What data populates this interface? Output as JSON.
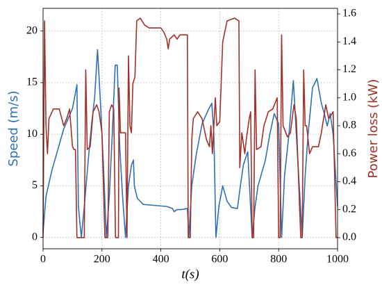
{
  "chart_data": {
    "type": "line",
    "xlabel": "t(s)",
    "ylabel": "Speed (m/s)",
    "y2label": "Power loss (kW)",
    "xlim": [
      0,
      1000
    ],
    "xticks": [
      0,
      200,
      400,
      600,
      800,
      1000
    ],
    "ylim": [
      -1.1,
      22.2
    ],
    "yticks": [
      0,
      5,
      10,
      15,
      20
    ],
    "y2lim": [
      -0.08,
      1.64
    ],
    "y2ticks": [
      {
        "value": 0,
        "label": "0.0"
      },
      0.2,
      0.4,
      0.6,
      0.8,
      {
        "value": 1,
        "label": "1.0"
      },
      1.2,
      1.4,
      1.6
    ],
    "grid": true,
    "series": [
      {
        "color": "#2f6fb5",
        "axis": "y",
        "x": [
          0,
          10,
          30,
          50,
          70,
          85,
          100,
          115,
          120,
          130,
          140,
          155,
          165,
          175,
          185,
          195,
          205,
          215,
          225,
          235,
          245,
          252,
          260,
          270,
          280,
          290,
          300,
          307,
          310,
          320,
          340,
          380,
          420,
          440,
          445,
          455,
          470,
          490,
          495,
          505,
          520,
          540,
          560,
          573,
          580,
          587,
          597,
          610,
          625,
          640,
          660,
          670,
          680,
          695,
          710,
          720,
          730,
          740,
          755,
          770,
          785,
          800,
          810,
          820,
          835,
          850,
          860,
          870,
          880,
          890,
          900,
          915,
          930,
          945,
          955,
          965,
          975,
          985,
          1000
        ],
        "values": [
          0.5,
          4,
          6.5,
          8.5,
          10.5,
          11.5,
          12.5,
          14.8,
          3,
          0,
          3,
          8,
          11,
          13.5,
          18.2,
          13,
          7,
          0,
          4,
          10,
          16.7,
          16.7,
          9,
          4,
          0,
          5,
          7,
          7.5,
          5,
          3.8,
          3.2,
          3.1,
          3.0,
          2.8,
          2.5,
          2.7,
          2.7,
          2.8,
          0,
          5,
          8,
          11,
          12.3,
          13,
          10,
          0,
          3,
          5,
          3.5,
          2.9,
          2.8,
          5,
          7,
          8.3,
          0,
          3,
          5,
          6,
          7.5,
          10,
          12,
          11,
          0,
          6,
          10,
          15.2,
          10,
          5,
          0,
          6,
          10,
          14.5,
          15.4,
          13,
          12,
          10.8,
          12,
          10,
          3
        ]
      },
      {
        "color": "#a33028",
        "axis": "y2",
        "x": [
          0,
          5,
          10,
          15,
          20,
          35,
          55,
          70,
          80,
          90,
          100,
          105,
          110,
          115,
          140,
          145,
          150,
          160,
          170,
          182,
          190,
          200,
          210,
          220,
          225,
          233,
          240,
          246,
          256,
          258,
          263,
          280,
          285,
          290,
          295,
          300,
          305,
          312,
          318,
          330,
          345,
          360,
          400,
          410,
          420,
          425,
          430,
          445,
          455,
          465,
          480,
          490,
          493,
          500,
          505,
          510,
          525,
          540,
          555,
          565,
          570,
          575,
          585,
          590,
          600,
          610,
          625,
          650,
          665,
          668,
          675,
          685,
          690,
          700,
          705,
          710,
          715,
          720,
          725,
          740,
          750,
          765,
          780,
          795,
          800,
          805,
          810,
          815,
          830,
          840,
          852,
          860,
          875,
          880,
          885,
          890,
          895,
          905,
          915,
          925,
          935,
          945,
          960,
          970,
          985,
          995,
          1000
        ],
        "values": [
          0,
          1.55,
          0.8,
          0.6,
          0.85,
          0.92,
          0.92,
          0.8,
          0.85,
          0.92,
          0.65,
          0.63,
          0.63,
          0,
          0,
          1.2,
          0.63,
          0.65,
          0.9,
          0.95,
          0.9,
          0.75,
          0,
          0,
          0.9,
          0.95,
          0.92,
          0,
          0,
          1.07,
          0.75,
          0.75,
          0,
          1.3,
          0.8,
          0.75,
          1.1,
          1.15,
          1.55,
          1.57,
          1.52,
          1.5,
          1.5,
          1.47,
          1.42,
          1.35,
          1.42,
          1.45,
          1.42,
          1.45,
          1.45,
          1.45,
          0,
          0,
          0.7,
          0.85,
          0.9,
          0.85,
          0.7,
          0.65,
          0.8,
          0.6,
          1.0,
          0.8,
          0.83,
          1.4,
          1.55,
          1.57,
          1.55,
          0.5,
          0.75,
          0.6,
          0.7,
          0.85,
          0.9,
          0,
          0,
          1.2,
          0.63,
          0.65,
          0.8,
          0.9,
          0.92,
          1.0,
          0,
          0,
          1.45,
          0.8,
          0.72,
          0.75,
          0.95,
          0.85,
          0,
          0,
          1.2,
          0.8,
          0.8,
          0.6,
          0.65,
          0.65,
          0.65,
          0.75,
          0.95,
          0.85,
          0.9,
          0,
          0
        ]
      }
    ]
  }
}
